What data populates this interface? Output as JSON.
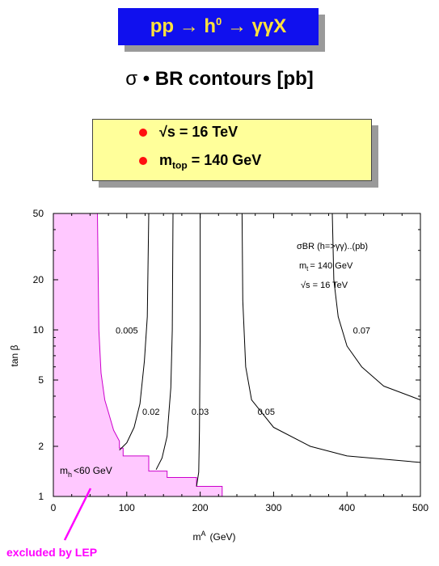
{
  "header": {
    "process_main": "pp",
    "arrow1": "→",
    "higgs": "h",
    "higgs_sup": "0",
    "arrow2": "→",
    "final_state": "γγX"
  },
  "subtitle": {
    "sigma": "σ",
    "dot": "•",
    "text": "BR contours [pb]"
  },
  "info": {
    "line1": "√s = 16 TeV",
    "line2_prefix": "m",
    "line2_sub": "top",
    "line2_value": "= 140 GeV"
  },
  "chart_data": {
    "type": "line",
    "xlabel": "m",
    "xlabel_sup": "A",
    "xlabel_units": "(GeV)",
    "ylabel": "tan β",
    "xlim": [
      0,
      500
    ],
    "ylim": [
      1,
      50
    ],
    "yscale": "log",
    "xticks": [
      0,
      100,
      200,
      300,
      400,
      500
    ],
    "yticks": [
      1,
      2,
      5,
      10,
      20,
      50
    ],
    "legend": {
      "line1": "σBR (h=>γγ)..(pb)",
      "line2_prefix": "m",
      "line2_sub": "t",
      "line2_value": "= 140 GeV",
      "line3": "√s = 16 TeV"
    },
    "excluded_region": {
      "label_prefix": "m",
      "label_sub": "h",
      "label_value": "<60 GeV",
      "annotation": "excluded by LEP",
      "color": "#ffc8ff",
      "edge_color": "#cc00cc",
      "boundary": [
        [
          60,
          50
        ],
        [
          62,
          10
        ],
        [
          65,
          5.5
        ],
        [
          70,
          3.8
        ],
        [
          75,
          3.2
        ],
        [
          82,
          2.5
        ],
        [
          90,
          2.15
        ],
        [
          90,
          1.95
        ],
        [
          95,
          1.95
        ],
        [
          95,
          1.75
        ],
        [
          130,
          1.75
        ],
        [
          130,
          1.42
        ],
        [
          155,
          1.42
        ],
        [
          155,
          1.3
        ],
        [
          195,
          1.3
        ],
        [
          195,
          1.15
        ],
        [
          230,
          1.15
        ],
        [
          230,
          1.0
        ]
      ]
    },
    "series": [
      {
        "name": "0.005",
        "points": [
          [
            90,
            1.9
          ],
          [
            100,
            2.1
          ],
          [
            110,
            2.6
          ],
          [
            118,
            3.6
          ],
          [
            124,
            6.5
          ],
          [
            128,
            12
          ],
          [
            130,
            50
          ]
        ]
      },
      {
        "name": "0.02",
        "points": [
          [
            140,
            1.45
          ],
          [
            148,
            1.7
          ],
          [
            155,
            2.3
          ],
          [
            160,
            4.5
          ],
          [
            162,
            10
          ],
          [
            163,
            50
          ]
        ]
      },
      {
        "name": "0.03",
        "points": [
          [
            195,
            1.15
          ],
          [
            198,
            1.4
          ],
          [
            199,
            2.5
          ],
          [
            200,
            10
          ],
          [
            200,
            50
          ]
        ]
      },
      {
        "name": "0.05",
        "points": [
          [
            257,
            50
          ],
          [
            258,
            15
          ],
          [
            262,
            6
          ],
          [
            270,
            3.8
          ],
          [
            300,
            2.6
          ],
          [
            350,
            2.0
          ],
          [
            400,
            1.75
          ],
          [
            500,
            1.6
          ]
        ]
      },
      {
        "name": "0.07",
        "points": [
          [
            380,
            50
          ],
          [
            382,
            20
          ],
          [
            388,
            12
          ],
          [
            400,
            8
          ],
          [
            420,
            6
          ],
          [
            450,
            4.6
          ],
          [
            500,
            3.8
          ]
        ]
      }
    ],
    "contour_labels": [
      {
        "text": "0.005",
        "x": 100,
        "y": 9.5
      },
      {
        "text": "0.02",
        "x": 133,
        "y": 3.1
      },
      {
        "text": "0.03",
        "x": 200,
        "y": 3.1
      },
      {
        "text": "0.05",
        "x": 290,
        "y": 3.1
      },
      {
        "text": "0.07",
        "x": 420,
        "y": 9.5
      }
    ],
    "grid": false
  }
}
